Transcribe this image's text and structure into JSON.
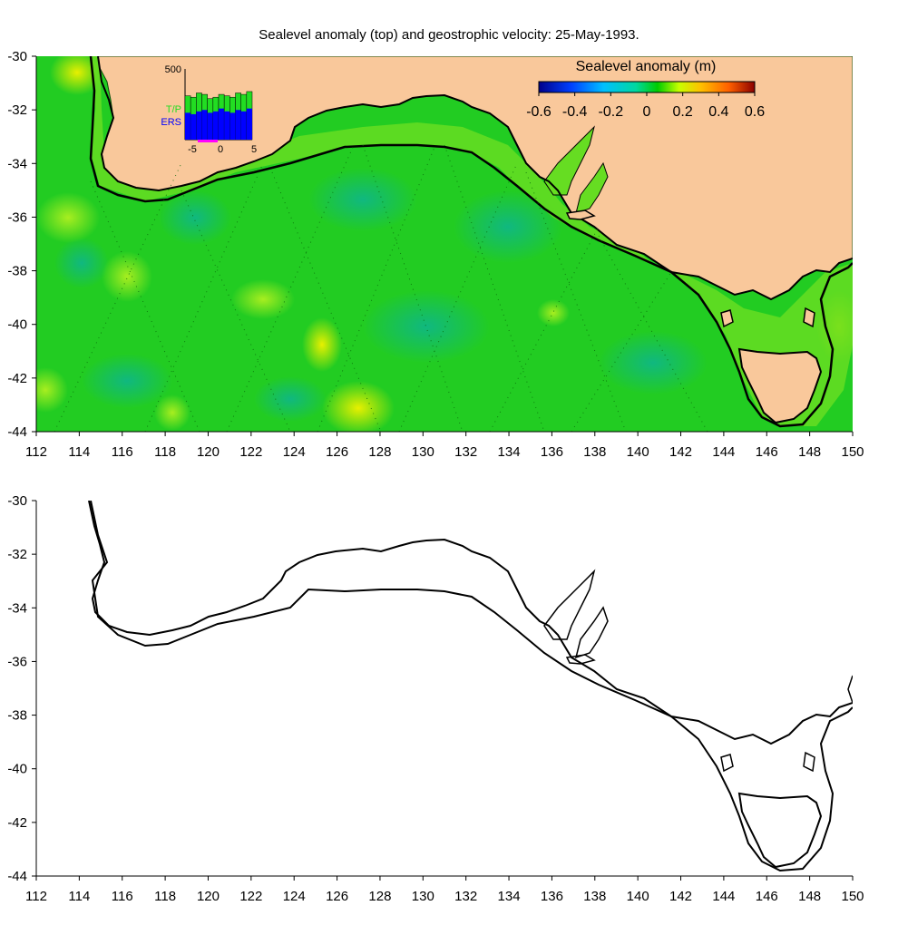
{
  "figure": {
    "title": "Sealevel anomaly (top) and geostrophic velocity: 25-May-1993."
  },
  "map_axes": {
    "lon_ticks": [
      "112",
      "114",
      "116",
      "118",
      "120",
      "122",
      "124",
      "126",
      "128",
      "130",
      "132",
      "134",
      "136",
      "138",
      "140",
      "142",
      "144",
      "146",
      "148",
      "150"
    ],
    "lat_ticks": [
      "-30",
      "-32",
      "-34",
      "-36",
      "-38",
      "-40",
      "-42",
      "-44"
    ],
    "lon_range": [
      112,
      150
    ],
    "lat_range": [
      -44,
      -30
    ]
  },
  "colorbar": {
    "label": "Sealevel anomaly (m)",
    "ticks": [
      "-0.6",
      "-0.4",
      "-0.2",
      "0",
      "0.2",
      "0.4",
      "0.6"
    ],
    "colors": [
      "#00008b",
      "#0040ff",
      "#00bfff",
      "#00d8a0",
      "#00cc00",
      "#c8ff00",
      "#ffc000",
      "#ff6000",
      "#8b0000"
    ],
    "land_color": "#f9c89b",
    "ocean_color": "#22cc22"
  },
  "inset": {
    "ymax_label": "500",
    "tp_label": "T/P",
    "ers_label": "ERS",
    "x_ticks": [
      "-5",
      "0",
      "5"
    ],
    "tp_color": "#22dd22",
    "ers_color": "#0000ff",
    "tp_values": [
      310,
      300,
      330,
      320,
      290,
      300,
      320,
      310,
      300,
      330,
      320,
      340
    ],
    "ers_values": [
      190,
      180,
      200,
      210,
      190,
      200,
      220,
      200,
      190,
      210,
      200,
      220
    ]
  }
}
